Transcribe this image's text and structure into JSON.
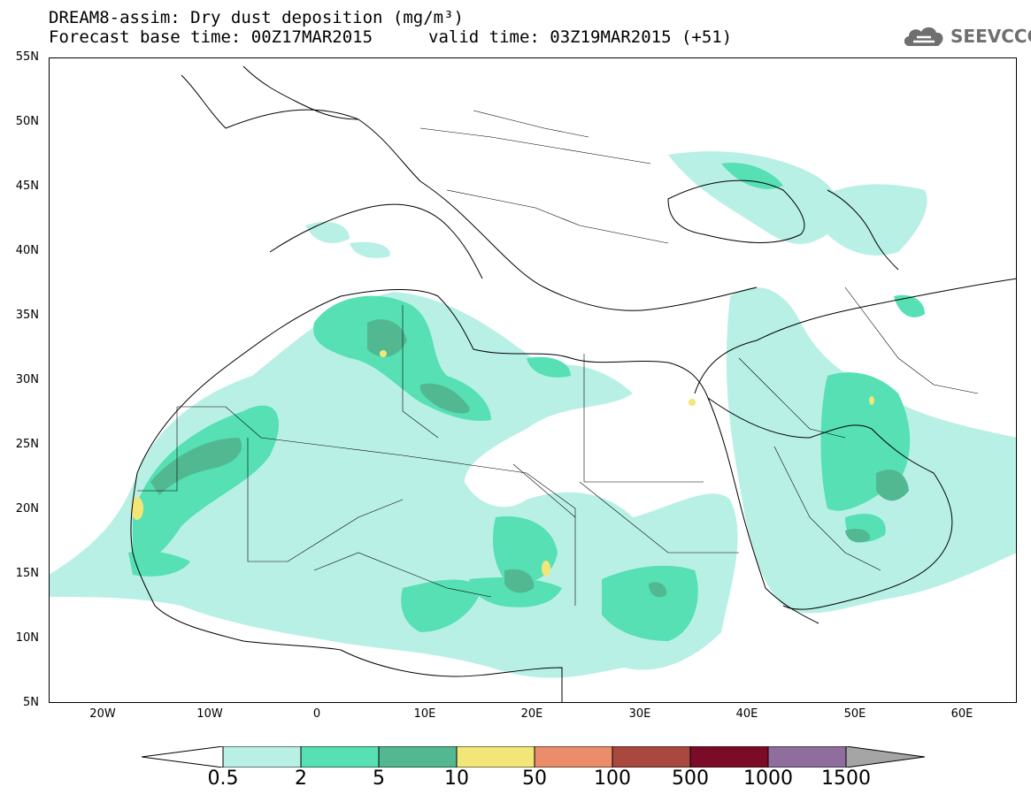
{
  "header": {
    "title_line1": "DREAM8-assim: Dry dust deposition (mg/m³)",
    "title_line2_left": "Forecast base time: 00Z17MAR2015",
    "title_line2_right": "valid time: 03Z19MAR2015 (+51)",
    "logo_text": "SEEVCCC",
    "logo_icon": "cloud-icon"
  },
  "map": {
    "lat_range": [
      5,
      55
    ],
    "lon_range": [
      -25,
      65
    ],
    "lat_labels": [
      "55N",
      "50N",
      "45N",
      "40N",
      "35N",
      "30N",
      "25N",
      "20N",
      "15N",
      "10N",
      "5N"
    ],
    "lon_labels": [
      "20W",
      "10W",
      "0",
      "10E",
      "20E",
      "30E",
      "40E",
      "50E",
      "60E"
    ]
  },
  "legend": {
    "thresholds": [
      "0.5",
      "2",
      "5",
      "10",
      "50",
      "100",
      "500",
      "1000",
      "1500"
    ],
    "colors": [
      "#b8f0e6",
      "#56e0b4",
      "#52b891",
      "#f2e679",
      "#eb8c6b",
      "#a8483e",
      "#7a0c28",
      "#8f6e9e",
      "#a5a5a5"
    ]
  }
}
